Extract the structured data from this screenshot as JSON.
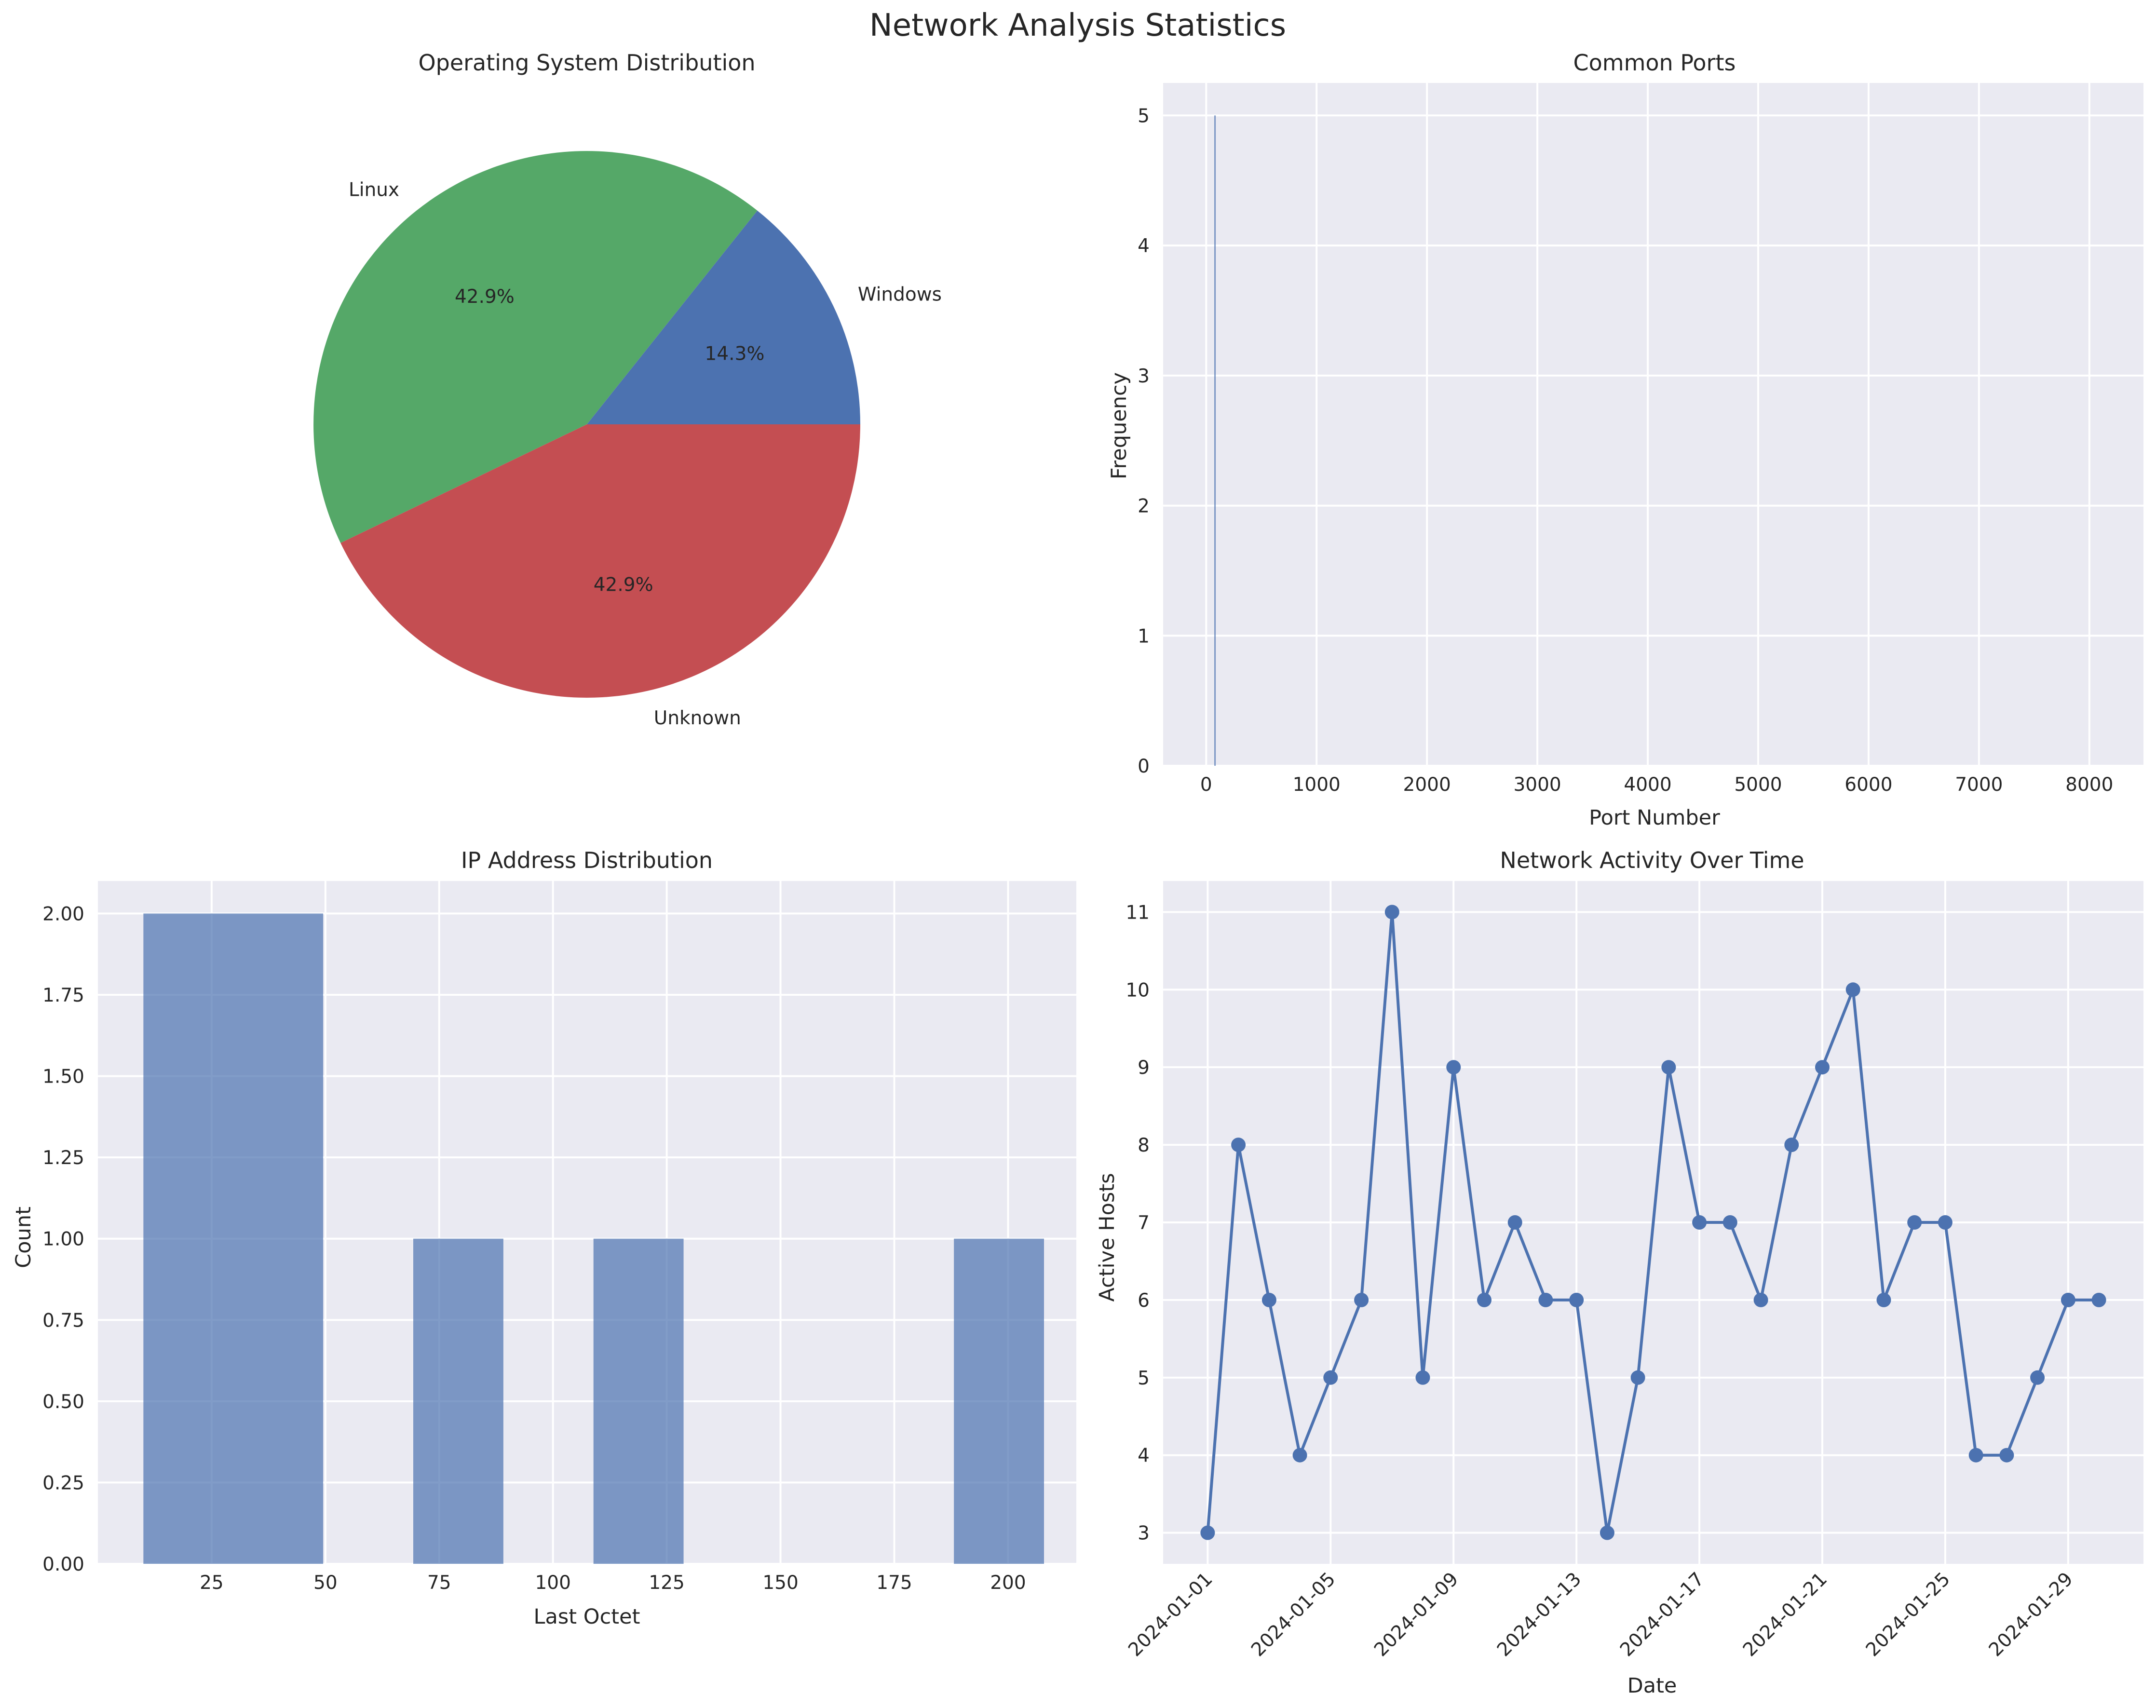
{
  "figure_title": "Network Analysis Statistics",
  "chart_data": [
    {
      "type": "pie",
      "title": "Operating System Distribution",
      "labels": [
        "Windows",
        "Linux",
        "Unknown"
      ],
      "values": [
        14.3,
        42.9,
        42.9
      ],
      "value_labels": [
        "14.3%",
        "42.9%",
        "42.9%"
      ],
      "colors": [
        "#4c72b0",
        "#55a868",
        "#c44e52"
      ]
    },
    {
      "type": "bar",
      "title": "Common Ports",
      "xlabel": "Port Number",
      "ylabel": "Frequency",
      "xlim": [
        -390,
        8490
      ],
      "ylim": [
        0,
        5.25
      ],
      "xticks": [
        0,
        1000,
        2000,
        3000,
        4000,
        5000,
        6000,
        7000,
        8000
      ],
      "yticks": [
        0,
        1,
        2,
        3,
        4,
        5
      ],
      "x": [
        80
      ],
      "values": [
        5
      ],
      "color": "#4c72b0",
      "grid": true
    },
    {
      "type": "bar",
      "title": "IP Address Distribution",
      "xlabel": "Last Octet",
      "ylabel": "Count",
      "xlim": [
        0,
        215
      ],
      "ylim": [
        0,
        2.1
      ],
      "xticks": [
        25,
        50,
        75,
        100,
        125,
        150,
        175,
        200
      ],
      "yticks": [
        0.0,
        0.25,
        0.5,
        0.75,
        1.0,
        1.25,
        1.5,
        1.75,
        2.0
      ],
      "ytick_labels": [
        "0.00",
        "0.25",
        "0.50",
        "0.75",
        "1.00",
        "1.25",
        "1.50",
        "1.75",
        "2.00"
      ],
      "bins": [
        [
          10,
          49.5
        ],
        [
          69.3,
          89.1
        ],
        [
          108.9,
          128.7
        ],
        [
          188.1,
          207.9
        ]
      ],
      "values": [
        2,
        1,
        1,
        1
      ],
      "color": "#4c72b0",
      "grid": true
    },
    {
      "type": "line",
      "title": "Network Activity Over Time",
      "xlabel": "Date",
      "ylabel": "Active Hosts",
      "ylim": [
        2.6,
        11.4
      ],
      "yticks": [
        3,
        4,
        5,
        6,
        7,
        8,
        9,
        10,
        11
      ],
      "xticks": [
        "2024-01-01",
        "2024-01-05",
        "2024-01-09",
        "2024-01-13",
        "2024-01-17",
        "2024-01-21",
        "2024-01-25",
        "2024-01-29"
      ],
      "x": [
        "2024-01-01",
        "2024-01-02",
        "2024-01-03",
        "2024-01-04",
        "2024-01-05",
        "2024-01-06",
        "2024-01-07",
        "2024-01-08",
        "2024-01-09",
        "2024-01-10",
        "2024-01-11",
        "2024-01-12",
        "2024-01-13",
        "2024-01-14",
        "2024-01-15",
        "2024-01-16",
        "2024-01-17",
        "2024-01-18",
        "2024-01-19",
        "2024-01-20",
        "2024-01-21",
        "2024-01-22",
        "2024-01-23",
        "2024-01-24",
        "2024-01-25",
        "2024-01-26",
        "2024-01-27",
        "2024-01-28",
        "2024-01-29",
        "2024-01-30"
      ],
      "values": [
        3,
        8,
        6,
        4,
        5,
        6,
        11,
        5,
        9,
        6,
        7,
        6,
        6,
        3,
        5,
        9,
        7,
        7,
        6,
        8,
        9,
        10,
        6,
        7,
        7,
        4,
        4,
        5,
        6,
        6
      ],
      "color": "#4c72b0",
      "grid": true
    }
  ]
}
